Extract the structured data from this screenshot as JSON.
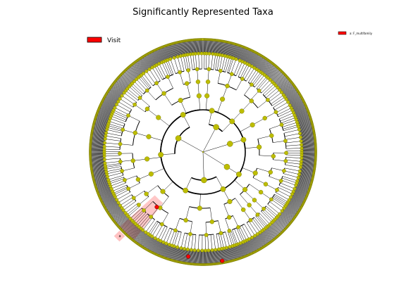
{
  "figure": {
    "title": "Significantly Represented Taxa",
    "legend_main": {
      "label": "Visit",
      "color": "#ff0000"
    },
    "legend_key": {
      "label": "a: F_multifamily",
      "color": "#ff0000"
    },
    "highlight_label": "a",
    "colors": {
      "node": "#bdbd00",
      "node_stroke": "#6f6f00",
      "significant": "#ff0000",
      "highlight": "#ff9999",
      "branch": "#000000"
    }
  }
}
